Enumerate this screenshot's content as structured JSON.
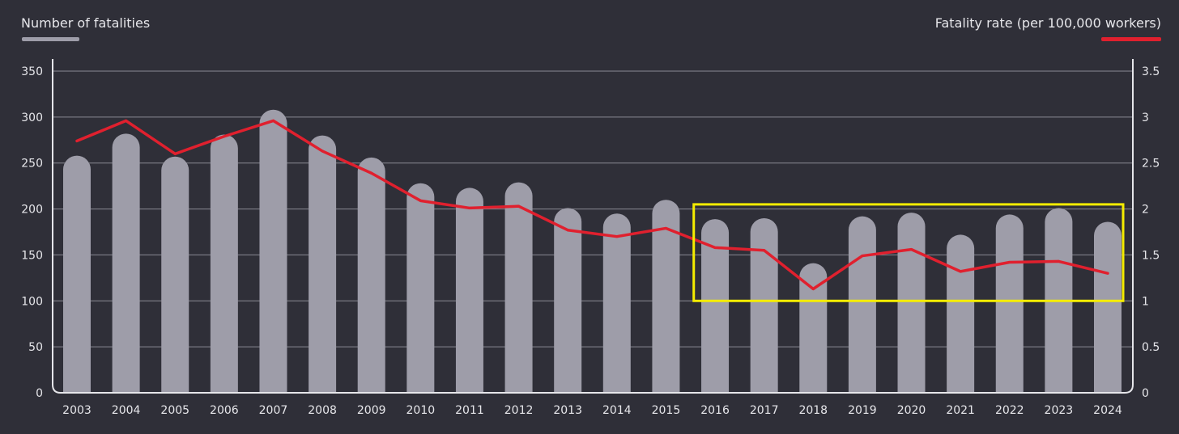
{
  "chart_data": {
    "type": "bar",
    "categories": [
      "2003",
      "2004",
      "2005",
      "2006",
      "2007",
      "2008",
      "2009",
      "2010",
      "2011",
      "2012",
      "2013",
      "2014",
      "2015",
      "2016",
      "2017",
      "2018",
      "2019",
      "2020",
      "2021",
      "2022",
      "2023",
      "2024"
    ],
    "series": [
      {
        "name": "Number of fatalities",
        "type": "bar",
        "axis": "left",
        "color": "#9e9da9",
        "values": [
          258,
          282,
          257,
          281,
          308,
          280,
          256,
          228,
          223,
          229,
          201,
          195,
          210,
          189,
          190,
          141,
          192,
          196,
          172,
          194,
          201,
          186
        ]
      },
      {
        "name": "Fatality rate (per 100,000 workers)",
        "type": "line",
        "axis": "right",
        "color": "#e0202e",
        "values": [
          2.74,
          2.96,
          2.6,
          2.79,
          2.96,
          2.63,
          2.39,
          2.09,
          2.01,
          2.03,
          1.77,
          1.7,
          1.79,
          1.58,
          1.55,
          1.13,
          1.49,
          1.56,
          1.32,
          1.42,
          1.43,
          1.3
        ]
      }
    ],
    "y_left": {
      "ylim": [
        0,
        350
      ],
      "ticks": [
        "0",
        "50",
        "100",
        "150",
        "200",
        "250",
        "300",
        "350"
      ]
    },
    "y_right": {
      "ylim": [
        0,
        3.5
      ],
      "ticks": [
        "0",
        "0.5",
        "1",
        "1.5",
        "2",
        "2.5",
        "3",
        "3.5"
      ]
    },
    "grid": true,
    "legend": {
      "left_label": "Number of fatalities",
      "right_label": "Fatality rate (per 100,000 workers)",
      "placement": "top"
    },
    "highlight": {
      "from_category": "2016",
      "to_category": "2024",
      "y_range_right": [
        1,
        2.05
      ],
      "color": "#f5ec00"
    },
    "colors": {
      "background": "#2f2f38",
      "text": "#e6e6ea",
      "grid": "#8a8a93",
      "axis": "#e6e6ea"
    }
  }
}
